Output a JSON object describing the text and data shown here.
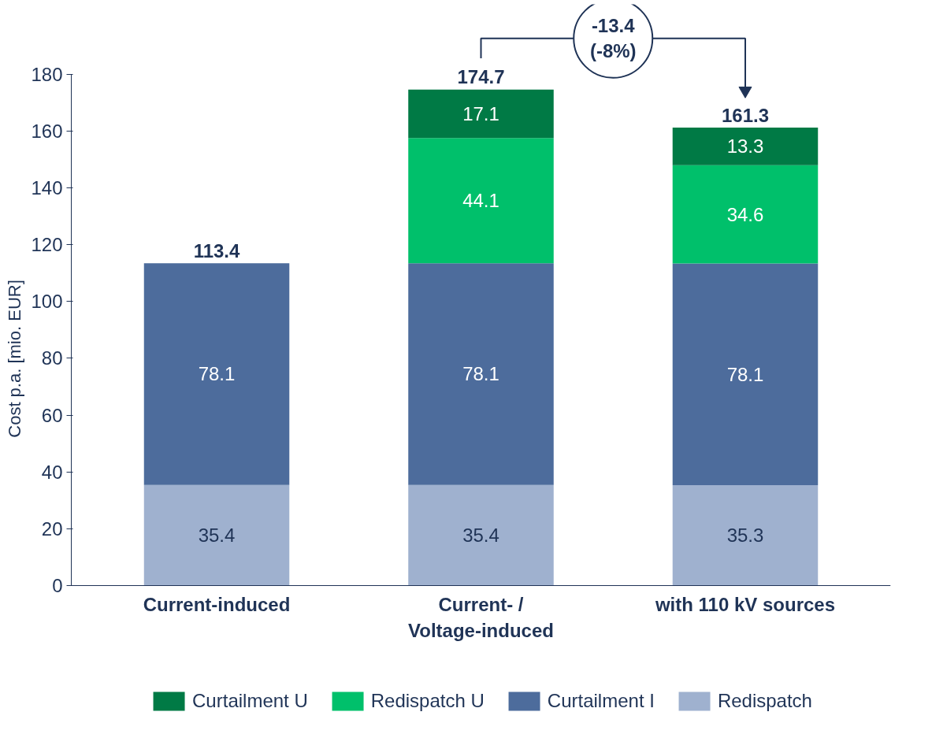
{
  "chart_data": {
    "type": "bar",
    "stacked": true,
    "ylabel": "Cost p.a. [mio. EUR]",
    "categories": [
      "Current-induced",
      "Current- /\nVoltage-induced",
      "with 110 kV sources"
    ],
    "series": [
      {
        "name": "Redispatch",
        "color": "#9fb1cf",
        "values": [
          35.4,
          35.4,
          35.3
        ]
      },
      {
        "name": "Curtailment I",
        "color": "#4d6c9c",
        "values": [
          78.1,
          78.1,
          78.1
        ]
      },
      {
        "name": "Redispatch U",
        "color": "#00c06b",
        "values": [
          null,
          44.1,
          34.6
        ]
      },
      {
        "name": "Curtailment U",
        "color": "#007a45",
        "values": [
          null,
          17.1,
          13.3
        ]
      }
    ],
    "totals": [
      "113.4",
      "174.7",
      "161.3"
    ],
    "annotations": [
      "-13.4\n(-8%)"
    ],
    "data_labels": true,
    "ylim": [
      0,
      180
    ],
    "yticks": [
      0,
      20,
      40,
      60,
      80,
      100,
      120,
      140,
      160,
      180
    ],
    "grid": false,
    "legend": "bottom"
  }
}
